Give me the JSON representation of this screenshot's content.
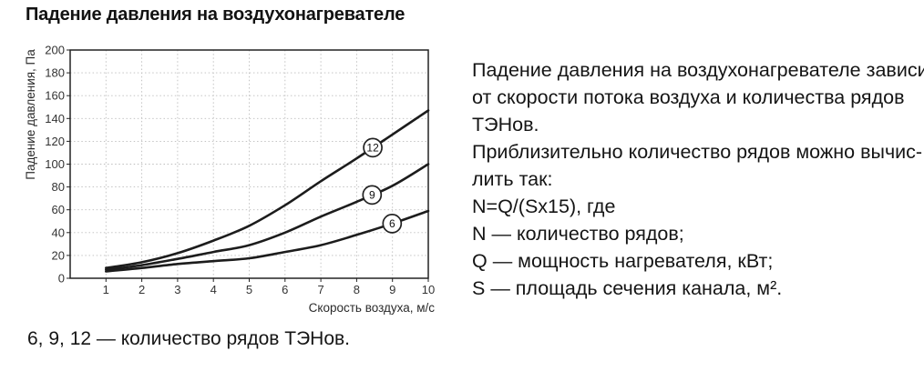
{
  "page": {
    "title": "Падение давления на воздухонагревателе",
    "caption": "6, 9, 12 — количество рядов ТЭНов."
  },
  "right_text": {
    "lines": [
      "Падение давления на воздухонагревателе зависит",
      "от скорости потока воздуха и количества рядов",
      "ТЭНов.",
      "Приблизительно количество рядов можно вычис-",
      "лить так:",
      "N=Q/(Sx15), где",
      "N — количество рядов;",
      "Q — мощность нагревателя, кВт;",
      "S — площадь сечения канала, м²."
    ]
  },
  "chart_data": {
    "type": "line",
    "x": [
      1,
      2,
      3,
      4,
      5,
      6,
      7,
      8,
      9,
      10
    ],
    "series": [
      {
        "name": "12",
        "values": [
          9,
          14,
          22,
          33,
          46,
          64,
          85,
          105,
          126,
          147
        ],
        "label_x": 8.45
      },
      {
        "name": "9",
        "values": [
          7.5,
          11.5,
          17,
          23,
          29,
          40,
          54,
          67,
          81,
          100
        ],
        "label_x": 8.43
      },
      {
        "name": "6",
        "values": [
          6,
          9,
          12.5,
          15,
          17.5,
          23,
          29,
          38,
          48,
          59
        ],
        "label_x": 8.99
      }
    ],
    "xlabel": "Скорость воздуха, м/с",
    "ylabel": "Падение давления, Па",
    "xlim": [
      0,
      10
    ],
    "ylim": [
      0,
      200
    ],
    "ytick_step": 20,
    "grid": "dotted",
    "colors": {
      "curve": "#1c1c1c",
      "frame": "#222222",
      "gridline": "#bdbdbd",
      "label_circle_fill": "#ffffff"
    }
  }
}
